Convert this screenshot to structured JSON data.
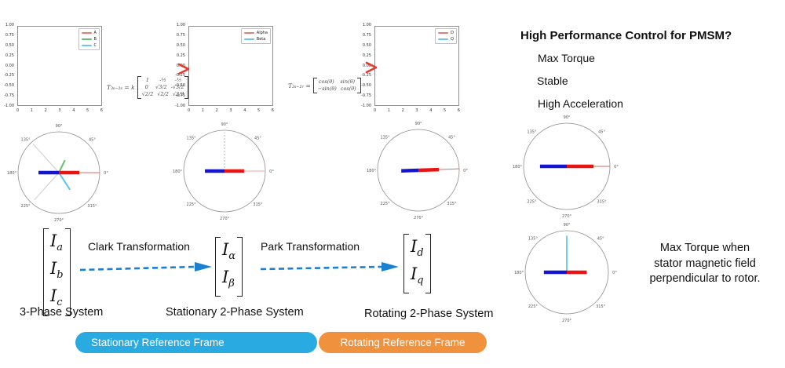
{
  "polar_labels": [
    "0°",
    "45°",
    "90°",
    "135°",
    "180°",
    "225°",
    "270°",
    "315°"
  ],
  "plots": [
    {
      "yticks": [
        "1.00",
        "0.75",
        "0.50",
        "0.25",
        "0.00",
        "-0.25",
        "-0.50",
        "-0.75",
        "-1.00"
      ],
      "xticks": [
        "0",
        "1",
        "2",
        "3",
        "4",
        "5",
        "6"
      ],
      "legend": [
        {
          "label": "A",
          "color": "#e87b72"
        },
        {
          "label": "B",
          "color": "#6fba74"
        },
        {
          "label": "C",
          "color": "#6ec6ea"
        }
      ]
    },
    {
      "yticks": [
        "1.00",
        "0.75",
        "0.50",
        "0.25",
        "0.00",
        "-0.25",
        "-0.50",
        "-0.75",
        "-1.00"
      ],
      "xticks": [
        "0",
        "1",
        "2",
        "3",
        "4",
        "5",
        "6"
      ],
      "legend": [
        {
          "label": "Alpha",
          "color": "#e87b72"
        },
        {
          "label": "Beta",
          "color": "#6ec6ea"
        }
      ]
    },
    {
      "yticks": [
        "1.00",
        "0.75",
        "0.50",
        "0.25",
        "0.00",
        "-0.25",
        "-0.50",
        "-0.75",
        "-1.00"
      ],
      "xticks": [
        "0",
        "1",
        "2",
        "3",
        "4",
        "5",
        "6"
      ],
      "legend": [
        {
          "label": "D",
          "color": "#e87b72"
        },
        {
          "label": "Q",
          "color": "#6ec6ea"
        }
      ]
    }
  ],
  "formulas": {
    "clarke": {
      "lhs": "T₃ₛ₋₂ₛ = k",
      "rows": [
        [
          "1",
          "-½",
          "-½"
        ],
        [
          "0",
          "√3/2",
          "-√3/2"
        ],
        [
          "√2/2",
          "√2/2",
          "√2/2"
        ]
      ]
    },
    "park": {
      "lhs": "T₂ₛ₋₂ᵣ =",
      "rows": [
        [
          "cos(θ)",
          "sin(θ)"
        ],
        [
          "−sin(θ)",
          "cos(θ)"
        ]
      ]
    }
  },
  "polars": [
    {
      "vectors": [
        {
          "a": 132,
          "l": 0.95,
          "c": "#cccccc",
          "w": 1
        },
        {
          "a": 228,
          "l": 0.9,
          "c": "#cccccc",
          "w": 1
        },
        {
          "a": 0,
          "l": 1.0,
          "c": "#e06a60",
          "w": 1
        },
        {
          "a": 64,
          "l": 0.34,
          "c": "#6abf69",
          "w": 2
        },
        {
          "a": -57,
          "l": 0.5,
          "c": "#58c4f2",
          "w": 2
        },
        {
          "a": 0,
          "l": 0.5,
          "c": "#e81313",
          "w": 4.5
        },
        {
          "a": 180,
          "l": 0.5,
          "c": "#1515cf",
          "w": 4.5
        }
      ]
    },
    {
      "vectors": [
        {
          "a": 90,
          "l": 0.95,
          "c": "#b5b5b5",
          "w": 1,
          "d": 1
        },
        {
          "a": 0,
          "l": 1.0,
          "c": "#efa8a2",
          "w": 1
        },
        {
          "a": 0,
          "l": 0.48,
          "c": "#e81313",
          "w": 4.5
        },
        {
          "a": 180,
          "l": 0.48,
          "c": "#1515cf",
          "w": 4.5
        }
      ]
    },
    {
      "vectors": [
        {
          "a": 2,
          "l": 1.0,
          "c": "#e06a60",
          "w": 1
        },
        {
          "a": 2,
          "l": 0.5,
          "c": "#e81313",
          "w": 4.5
        },
        {
          "a": 182,
          "l": 0.42,
          "c": "#1515cf",
          "w": 4.5
        }
      ]
    },
    {
      "vectors": [
        {
          "a": 0,
          "l": 1.0,
          "c": "#c96a60",
          "w": 1
        },
        {
          "a": 0,
          "l": 0.62,
          "c": "#e81313",
          "w": 4.5
        },
        {
          "a": 180,
          "l": 0.62,
          "c": "#1515cf",
          "w": 4.5
        }
      ]
    },
    {
      "vectors": [
        {
          "a": 90,
          "l": 0.88,
          "c": "#49b8ec",
          "w": 1.5
        },
        {
          "a": 0,
          "l": 0.48,
          "c": "#e81313",
          "w": 4.5
        },
        {
          "a": 180,
          "l": 0.55,
          "c": "#1515cf",
          "w": 4.5
        }
      ]
    }
  ],
  "pipeline": {
    "matrices": {
      "abc": [
        {
          "base": "I",
          "sub": "a"
        },
        {
          "base": "I",
          "sub": "b"
        },
        {
          "base": "I",
          "sub": "c"
        }
      ],
      "alphabeta": [
        {
          "base": "I",
          "sub": "α"
        },
        {
          "base": "I",
          "sub": "β"
        }
      ],
      "dq": [
        {
          "base": "I",
          "sub": "d"
        },
        {
          "base": "I",
          "sub": "q"
        }
      ]
    },
    "clark_label": "Clark Transformation",
    "park_label": "Park Transformation",
    "captions": [
      "3-Phase System",
      "Stationary 2-Phase System",
      "Rotating 2-Phase System"
    ]
  },
  "buttons": {
    "stationary": "Stationary Reference Frame",
    "rotating": "Rotating Reference Frame"
  },
  "right_panel": {
    "title": "High Performance Control for PMSM?",
    "items": [
      "Max Torque",
      "Stable",
      "High Acceleration"
    ],
    "note_lines": [
      "Max Torque when",
      "stator magnetic field",
      "perpendicular to rotor."
    ]
  },
  "colors": {
    "stationary_pill": "#29ABE2",
    "rotating_pill": "#F0913E",
    "arrow_blue": "#1b80d2",
    "grad_start": "#2fb3ee",
    "grad_mid1": "#59bbe0",
    "grad_mid2": "#f09a5a",
    "grad_end": "#f2552c",
    "arrowhead_red": "#e8392e"
  }
}
